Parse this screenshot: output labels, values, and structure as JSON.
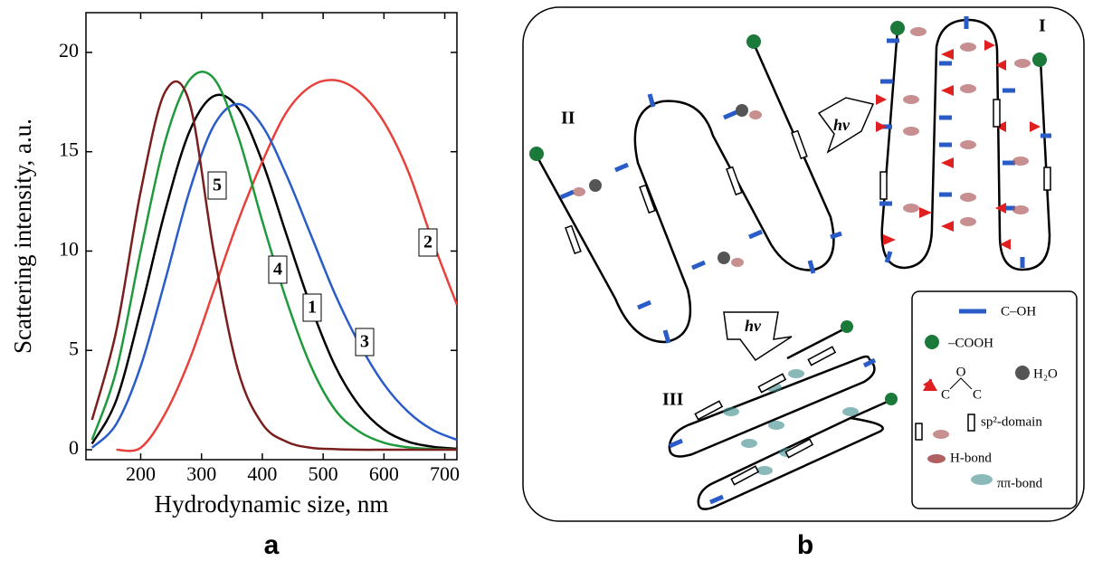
{
  "chart_data": {
    "type": "line",
    "xlabel": "Hydrodynamic size, nm",
    "ylabel": "Scattering intensity, a.u.",
    "panel_label": "a",
    "x": [
      120,
      160,
      200,
      240,
      280,
      320,
      360,
      400,
      440,
      480,
      520,
      560,
      600,
      640,
      680,
      720
    ],
    "series": [
      {
        "name": "1",
        "color": "#000000",
        "values": [
          0.3,
          2.5,
          7,
          12,
          16,
          17.8,
          17.2,
          14.5,
          10.8,
          7.2,
          4.2,
          2.2,
          1,
          0.4,
          0.15,
          0.05
        ]
      },
      {
        "name": "2",
        "color": "#e8403a",
        "values": [
          null,
          0,
          0.1,
          1.8,
          4.5,
          8,
          11.5,
          14.5,
          17,
          18.3,
          18.6,
          18,
          16.5,
          14,
          10.5,
          7.3
        ]
      },
      {
        "name": "3",
        "color": "#2a5cc8",
        "values": [
          0.1,
          1.3,
          4.2,
          8.5,
          13,
          16.3,
          17.4,
          16.3,
          13.8,
          10.8,
          7.8,
          5.3,
          3.3,
          1.9,
          1,
          0.5
        ]
      },
      {
        "name": "4",
        "color": "#1e9a3c",
        "values": [
          0.5,
          4,
          10,
          15.5,
          18.6,
          18.7,
          15.8,
          11.5,
          7.5,
          4.2,
          2,
          0.9,
          0.35,
          0.12,
          0.04,
          0.01
        ]
      },
      {
        "name": "5",
        "color": "#7a1e1e",
        "values": [
          1.5,
          6,
          13,
          18,
          17.5,
          10,
          4,
          1.3,
          0.4,
          0.1,
          0.03,
          0,
          0,
          0,
          0,
          0
        ]
      }
    ],
    "xlim": [
      110,
      720
    ],
    "ylim": [
      -0.5,
      22
    ],
    "xticks": [
      200,
      300,
      400,
      500,
      600,
      700
    ],
    "yticks": [
      0,
      5,
      10,
      15,
      20
    ]
  },
  "diagram": {
    "panel_label": "b",
    "structures": [
      "I",
      "II",
      "III"
    ],
    "arrows": [
      "hν",
      "hν"
    ],
    "legend": {
      "coh": "C–OH",
      "cooh": "–COOH",
      "epoxide": [
        "O",
        "C",
        "C"
      ],
      "water": "H₂O",
      "sp2": "sp²-domain",
      "hbond": "H-bond",
      "pibond": "ππ-bond"
    }
  }
}
